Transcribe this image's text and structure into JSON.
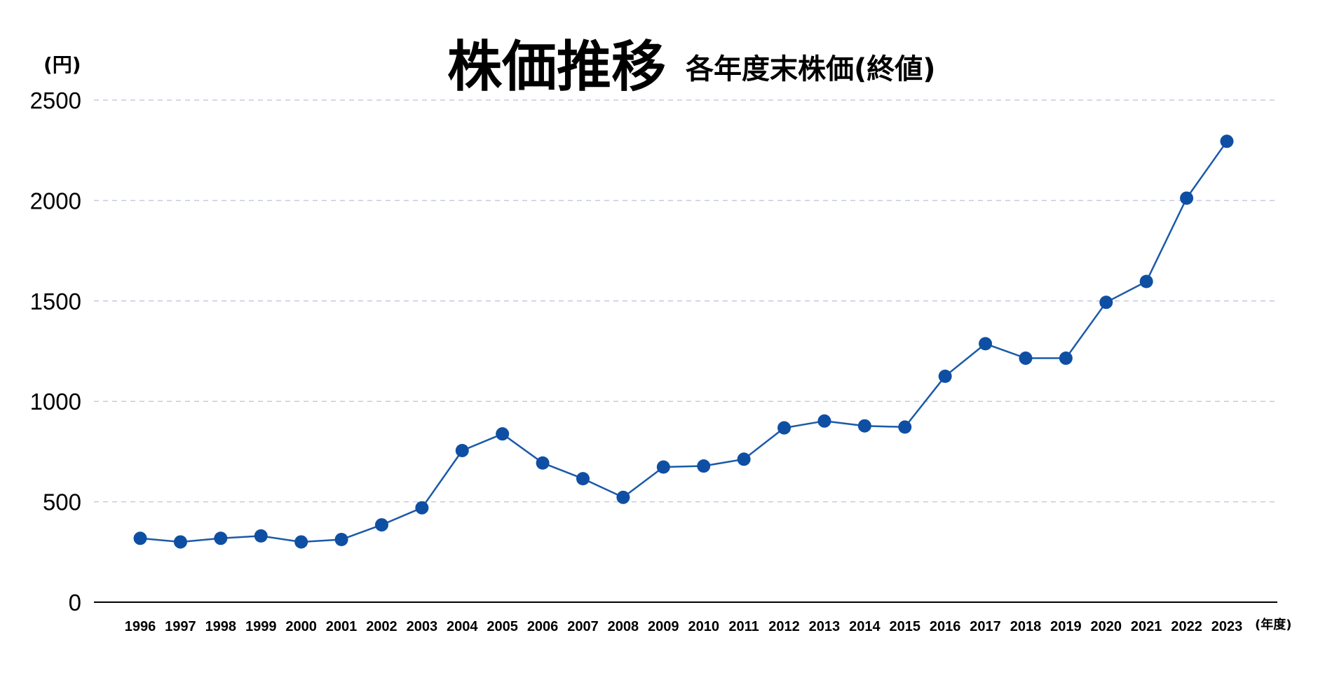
{
  "colors": {
    "line": "#1a5aa8",
    "marker": "#0f4fa3",
    "grid": "#c5cbe0",
    "axis": "#000000"
  },
  "chart_data": {
    "type": "line",
    "title": "株価推移",
    "subtitle": "各年度末株価(終値)",
    "ylabel": "(円)",
    "xlabel": "(年度)",
    "ylim": [
      0,
      2500
    ],
    "yticks": [
      0,
      500,
      1000,
      1500,
      2000,
      2500
    ],
    "grid": true,
    "x": [
      "1996",
      "1997",
      "1998",
      "1999",
      "2000",
      "2001",
      "2002",
      "2003",
      "2004",
      "2005",
      "2006",
      "2007",
      "2008",
      "2009",
      "2010",
      "2011",
      "2012",
      "2013",
      "2014",
      "2015",
      "2016",
      "2017",
      "2018",
      "2019",
      "2020",
      "2021",
      "2022",
      "2023"
    ],
    "series": [
      {
        "values": [
          318,
          300,
          318,
          330,
          300,
          312,
          385,
          470,
          755,
          838,
          693,
          615,
          522,
          673,
          678,
          712,
          868,
          902,
          878,
          872,
          1125,
          1287,
          1215,
          1215,
          1493,
          1597,
          2012,
          2295
        ]
      }
    ]
  }
}
